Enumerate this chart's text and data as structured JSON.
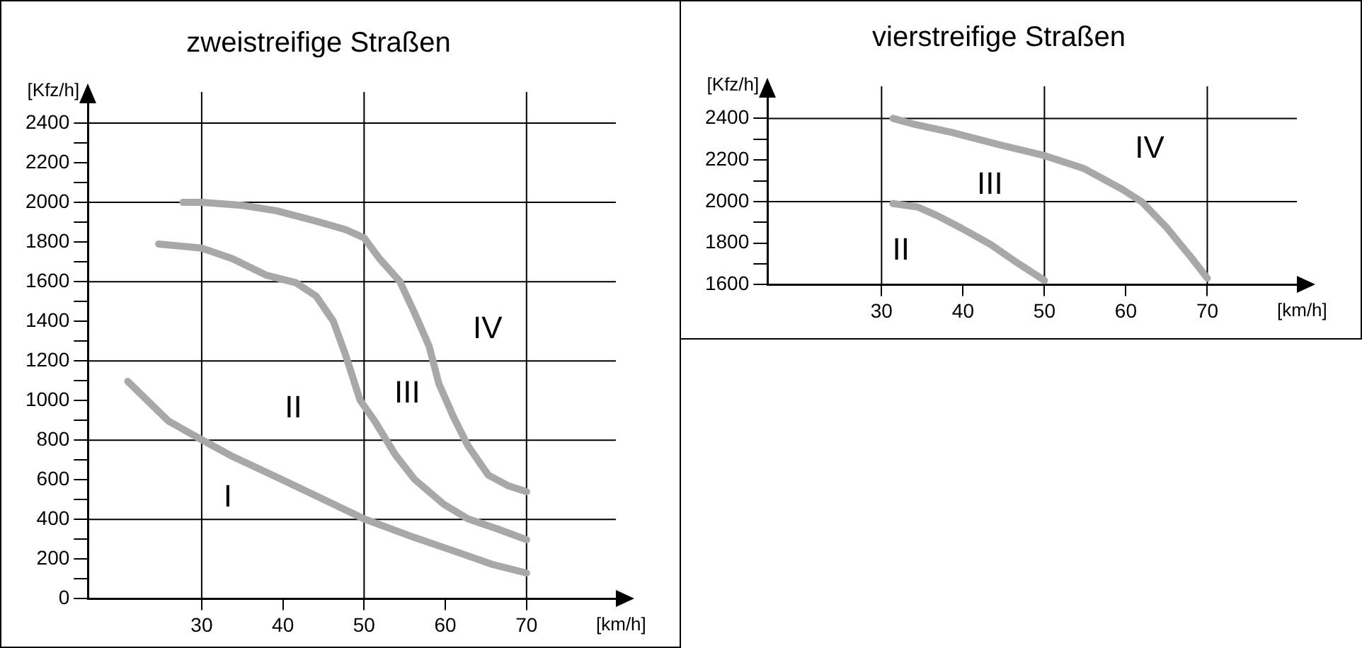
{
  "chart_data": [
    {
      "type": "line",
      "title": "zweistreifige Straßen",
      "xlabel": "[km/h]",
      "ylabel": "[Kfz/h]",
      "xlim": [
        16,
        81
      ],
      "ylim": [
        0,
        2500
      ],
      "xticks": [
        30,
        40,
        50,
        60,
        70
      ],
      "yticks": [
        0,
        {
          "value": 100,
          "label": null
        },
        200,
        {
          "value": 300,
          "label": null
        },
        400,
        {
          "value": 500,
          "label": null
        },
        600,
        {
          "value": 700,
          "label": null
        },
        800,
        {
          "value": 900,
          "label": null
        },
        1000,
        {
          "value": 1100,
          "label": null
        },
        1200,
        {
          "value": 1300,
          "label": null
        },
        1400,
        {
          "value": 1500,
          "label": null
        },
        1600,
        {
          "value": 1700,
          "label": null
        },
        1800,
        {
          "value": 1900,
          "label": null
        },
        2000,
        {
          "value": 2100,
          "label": null
        },
        2200,
        {
          "value": 2300,
          "label": null
        },
        2400
      ],
      "grid": false,
      "legend": false,
      "marker": "none",
      "line_style": "solid",
      "ref_lines": [
        {
          "axis": "x",
          "value": 30,
          "color": "#000000"
        },
        {
          "axis": "x",
          "value": 50,
          "color": "#000000"
        },
        {
          "axis": "x",
          "value": 70,
          "color": "#000000"
        },
        {
          "axis": "y",
          "value": 400,
          "color": "#000000"
        },
        {
          "axis": "y",
          "value": 800,
          "color": "#000000"
        },
        {
          "axis": "y",
          "value": 1200,
          "color": "#000000"
        },
        {
          "axis": "y",
          "value": 1600,
          "color": "#000000"
        },
        {
          "axis": "y",
          "value": 2000,
          "color": "#000000"
        },
        {
          "axis": "y",
          "value": 2400,
          "color": "#000000"
        }
      ],
      "series": [
        {
          "color": "#a8a8a8",
          "x": [
            20.9,
            25.9,
            30,
            33.8,
            39.8,
            44.1,
            50,
            56.2,
            62.2,
            65.9,
            70
          ],
          "values": [
            1097,
            897,
            802,
            718,
            603,
            519,
            403,
            309,
            225,
            172,
            130
          ]
        },
        {
          "color": "#a8a8a8",
          "x": [
            24.7,
            30,
            33.8,
            38,
            41.6,
            44.1,
            46.2,
            47.7,
            49.5,
            51.3,
            53.8,
            56.2,
            59.8,
            62.8,
            66.5,
            70
          ],
          "values": [
            1790,
            1769,
            1716,
            1632,
            1595,
            1527,
            1401,
            1233,
            1002,
            897,
            729,
            603,
            477,
            403,
            351,
            298
          ]
        },
        {
          "color": "#a8a8a8",
          "x": [
            27.7,
            30,
            35,
            39.2,
            44.1,
            47.7,
            50,
            51.9,
            54.4,
            56.2,
            58,
            59.2,
            61,
            62.8,
            65.3,
            67.7,
            70
          ],
          "values": [
            2000,
            2000,
            1985,
            1958,
            1905,
            1863,
            1821,
            1716,
            1601,
            1443,
            1275,
            1086,
            918,
            771,
            624,
            571,
            540
          ]
        }
      ],
      "annotations": [
        "I",
        "II",
        "III",
        "IV"
      ]
    },
    {
      "type": "line",
      "title": "vierstreifige Straßen",
      "xlabel": "[km/h]",
      "ylabel": "[Kfz/h]",
      "xlim": [
        16,
        81
      ],
      "ylim": [
        1600,
        2500
      ],
      "xticks": [
        30,
        40,
        50,
        60,
        70
      ],
      "yticks": [
        1600,
        {
          "value": 1700,
          "label": null
        },
        1800,
        {
          "value": 1900,
          "label": null
        },
        2000,
        {
          "value": 2100,
          "label": null
        },
        2200,
        {
          "value": 2300,
          "label": null
        },
        2400
      ],
      "grid": false,
      "legend": false,
      "marker": "none",
      "line_style": "solid",
      "ref_lines": [
        {
          "axis": "x",
          "value": 30,
          "color": "#000000"
        },
        {
          "axis": "x",
          "value": 50,
          "color": "#000000"
        },
        {
          "axis": "x",
          "value": 70,
          "color": "#000000"
        },
        {
          "axis": "y",
          "value": 2000,
          "color": "#000000"
        },
        {
          "axis": "y",
          "value": 2400,
          "color": "#000000"
        }
      ],
      "series": [
        {
          "color": "#a8a8a8",
          "x": [
            31.4,
            34.4,
            36.8,
            39.8,
            43.4,
            46.4,
            48.8,
            50
          ],
          "values": [
            1990,
            1974,
            1933,
            1872,
            1793,
            1712,
            1651,
            1620
          ]
        },
        {
          "color": "#a8a8a8",
          "x": [
            31.4,
            33.8,
            38.6,
            44.6,
            50,
            54.8,
            59.6,
            62,
            65,
            68,
            70
          ],
          "values": [
            2400,
            2374,
            2333,
            2272,
            2221,
            2160,
            2058,
            1997,
            1875,
            1732,
            1631
          ]
        }
      ],
      "annotations": [
        "II",
        "III",
        "IV"
      ]
    }
  ]
}
